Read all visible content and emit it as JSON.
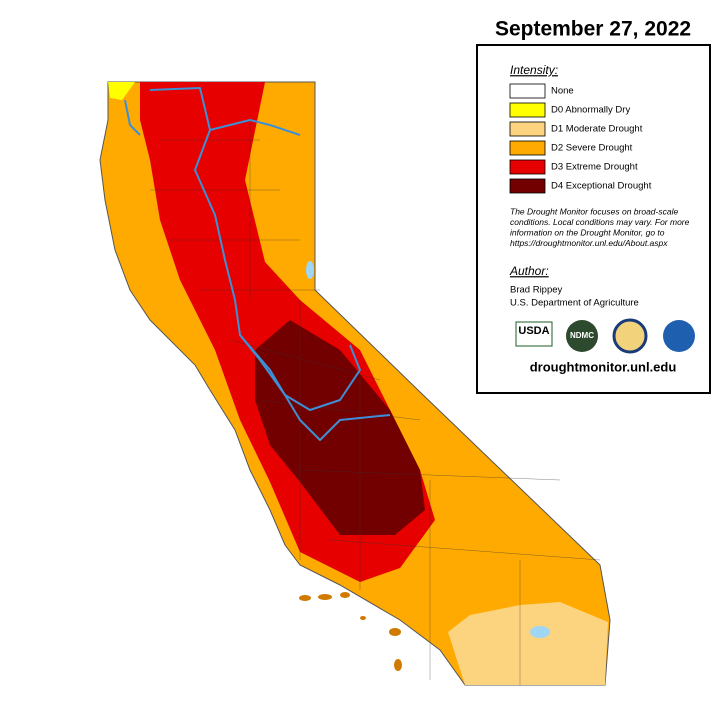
{
  "header": {
    "title": "September 27, 2022"
  },
  "legend": {
    "heading": "Intensity:",
    "items": [
      {
        "label": "None",
        "color": "#ffffff"
      },
      {
        "label": "D0 Abnormally Dry",
        "color": "#ffff00"
      },
      {
        "label": "D1 Moderate Drought",
        "color": "#fcd37f"
      },
      {
        "label": "D2 Severe Drought",
        "color": "#ffaa00"
      },
      {
        "label": "D3 Extreme Drought",
        "color": "#e60000"
      },
      {
        "label": "D4 Exceptional Drought",
        "color": "#730000"
      }
    ]
  },
  "note": [
    "The Drought Monitor focuses on broad-scale",
    "conditions. Local conditions may vary. For more",
    "information on the Drought Monitor, go to",
    "https://droughtmonitor.unl.edu/About.aspx"
  ],
  "author": {
    "heading": "Author:",
    "lines": [
      "Brad Rippey",
      "U.S. Department of Agriculture"
    ]
  },
  "logos": [
    "USDA",
    "NDMC"
  ],
  "url": "droughtmonitor.unl.edu"
}
